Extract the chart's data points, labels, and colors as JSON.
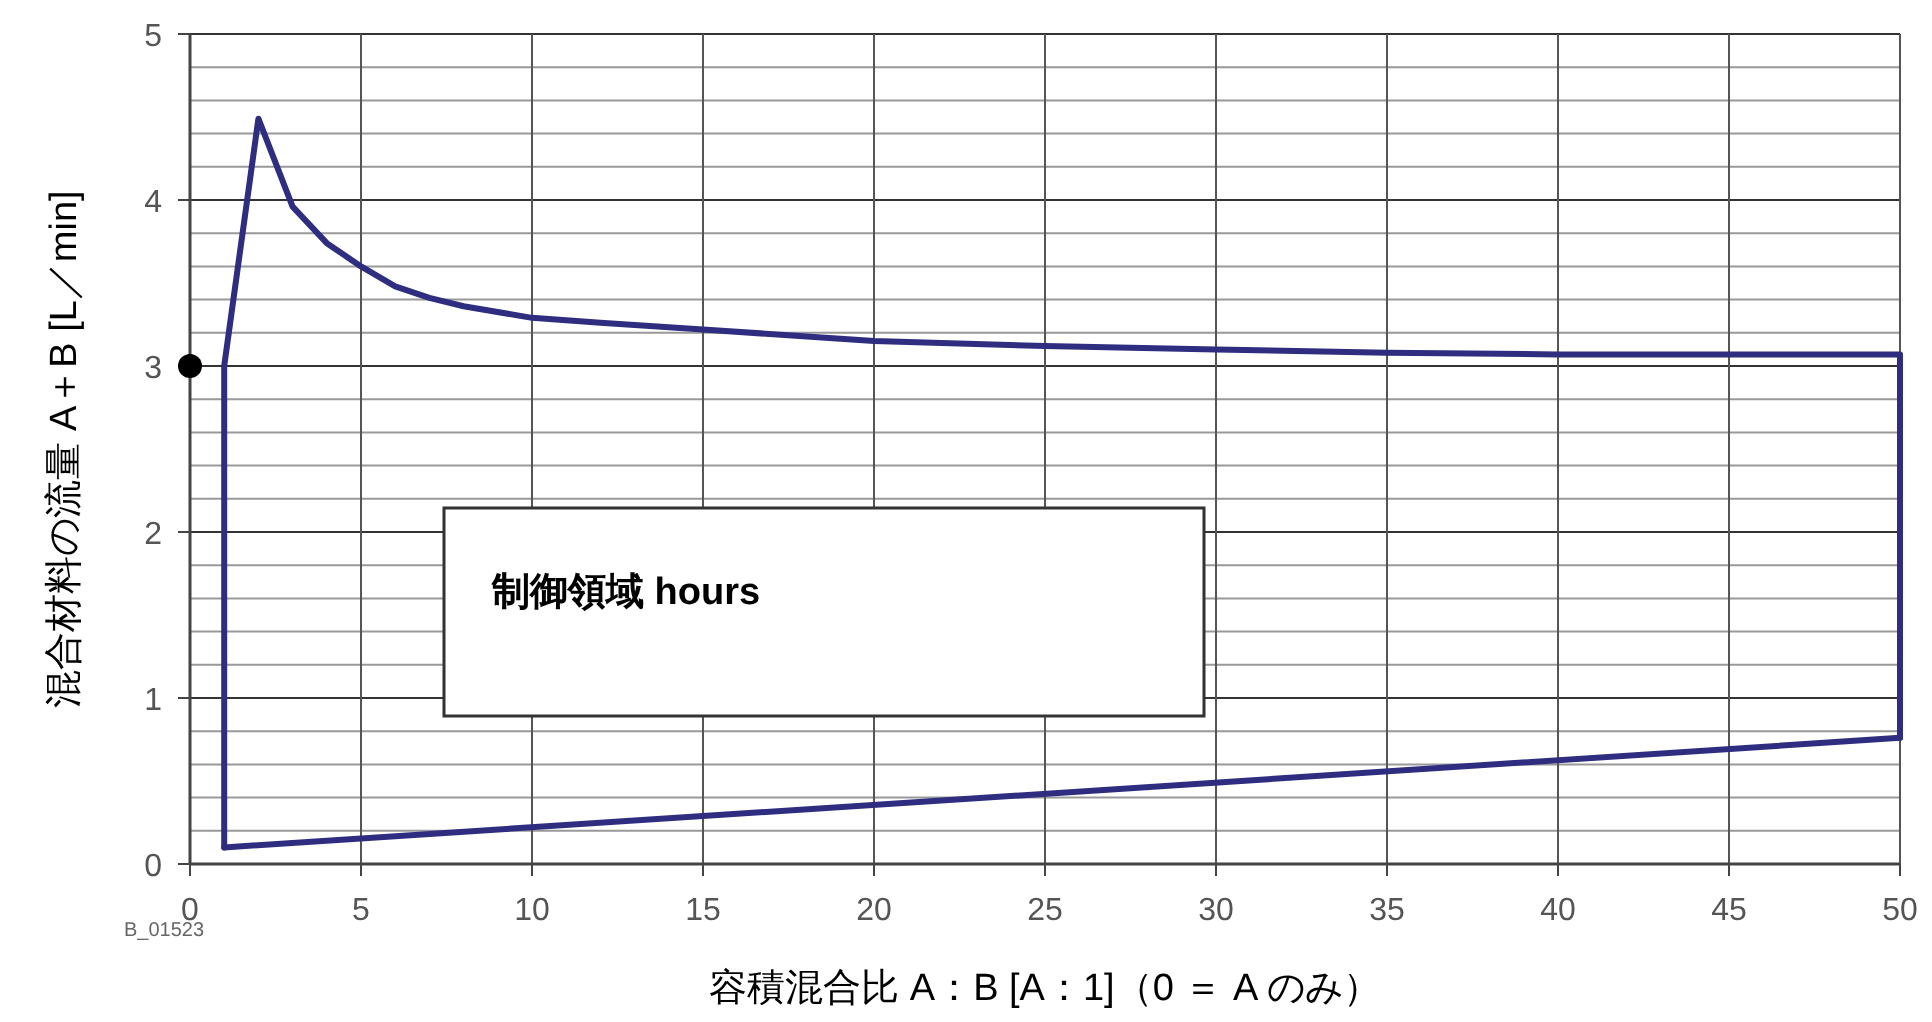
{
  "chart_data": {
    "type": "line",
    "xlabel": "容積混合比  A：B [A：1]（0 ＝ A のみ）",
    "ylabel": "混合材料の流量  A＋B [L／min]",
    "annotations": [
      "制御領域  hours",
      "B_01523"
    ],
    "xlim": [
      0,
      50
    ],
    "ylim": [
      0,
      5
    ],
    "xticks": [
      0,
      5,
      10,
      15,
      20,
      25,
      30,
      35,
      40,
      45,
      50
    ],
    "yticks": [
      0,
      1,
      2,
      3,
      4,
      5
    ],
    "grid": true,
    "series": [
      {
        "color": "#2e2d7f",
        "x": [
          1,
          1,
          2,
          3,
          4,
          5,
          6,
          7,
          8,
          10,
          12,
          15,
          20,
          25,
          30,
          35,
          40,
          45,
          50,
          50
        ],
        "values": [
          0.1,
          3,
          4.49,
          3.96,
          3.74,
          3.6,
          3.48,
          3.41,
          3.36,
          3.29,
          3.26,
          3.22,
          3.15,
          3.12,
          3.1,
          3.08,
          3.07,
          3.07,
          3.07,
          0.76
        ]
      },
      {
        "color": "#2e2d7f",
        "x": [
          1,
          50
        ],
        "values": [
          0.1,
          0.76
        ]
      },
      {
        "type": "scatter",
        "marker": "circle",
        "color": "#000000",
        "x": [
          0
        ],
        "values": [
          3
        ]
      }
    ]
  }
}
